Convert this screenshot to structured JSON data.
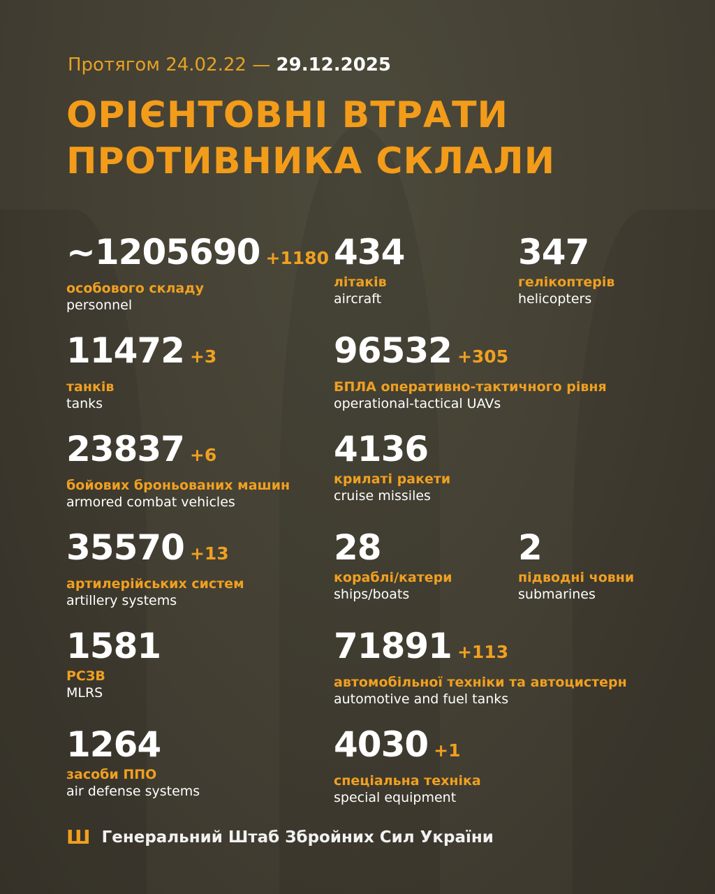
{
  "header": {
    "date_prefix": "Протягом 24.02.22 —",
    "date_end": "29.12.2025",
    "title_line1": "ОРІЄНТОВНІ ВТРАТИ",
    "title_line2": "ПРОТИВНИКА СКЛАЛИ"
  },
  "colors": {
    "accent": "#f0a020",
    "background": "#45412f",
    "text": "#ffffff"
  },
  "stats": [
    {
      "value": "~1205690",
      "delta": "+1180",
      "ua": "особового складу",
      "en": "personnel"
    },
    {
      "value": "434",
      "delta": "",
      "ua": "літаків",
      "en": "aircraft"
    },
    {
      "value": "347",
      "delta": "",
      "ua": "гелікоптерів",
      "en": "helicopters"
    },
    {
      "value": "11472",
      "delta": "+3",
      "ua": "танків",
      "en": "tanks"
    },
    {
      "value": "96532",
      "delta": "+305",
      "ua": "БПЛА оперативно-тактичного рівня",
      "en": "operational-tactical UAVs"
    },
    {
      "value": "23837",
      "delta": "+6",
      "ua": "бойових броньованих машин",
      "en": "armored combat vehicles"
    },
    {
      "value": "4136",
      "delta": "",
      "ua": "крилаті ракети",
      "en": "cruise missiles"
    },
    {
      "value": "35570",
      "delta": "+13",
      "ua": "артилерійських систем",
      "en": "artillery systems"
    },
    {
      "value": "28",
      "delta": "",
      "ua": "кораблі/катери",
      "en": "ships/boats"
    },
    {
      "value": "2",
      "delta": "",
      "ua": "підводні човни",
      "en": "submarines"
    },
    {
      "value": "1581",
      "delta": "",
      "ua": "РСЗВ",
      "en": "MLRS"
    },
    {
      "value": "71891",
      "delta": "+113",
      "ua": "автомобільної техніки та автоцистерн",
      "en": "automotive and fuel tanks"
    },
    {
      "value": "1264",
      "delta": "",
      "ua": "засоби ППО",
      "en": "air defense systems"
    },
    {
      "value": "4030",
      "delta": "+1",
      "ua": "спеціальна техніка",
      "en": "special equipment"
    }
  ],
  "footer": {
    "icon": "trident-icon",
    "text": "Генеральний Штаб Збройних Сил України"
  }
}
